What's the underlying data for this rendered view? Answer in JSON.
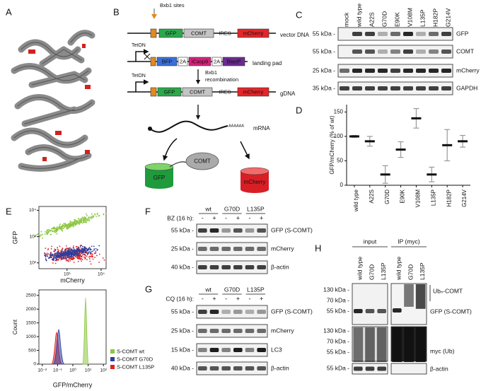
{
  "panel_labels": [
    "A",
    "B",
    "C",
    "D",
    "E",
    "F",
    "G",
    "H"
  ],
  "b": {
    "bxb1_sites": "Bxb1 sites",
    "tet_on": "TetON",
    "vector": {
      "gfp": "GFP",
      "comt": "COMT",
      "ires": "IRES",
      "mcherry": "mCherry",
      "label": "vector DNA"
    },
    "landing": {
      "bfp": "BFP",
      "t2a_1": "2A",
      "icasp9": "iCasp9",
      "t2a_2": "2A",
      "blast": "Blastᴿ",
      "label": "landing pad"
    },
    "recombination": [
      "Bxb1",
      "recombination"
    ],
    "gdna": {
      "gfp": "GFP",
      "comt": "COMT",
      "ires": "IRES",
      "mcherry": "mCherry",
      "label": "gDNA"
    },
    "mrna": "mRNA",
    "polya": "AAAAAA",
    "protein": {
      "gfp": "GFP",
      "comt": "COMT",
      "mcherry": "mCherry"
    }
  },
  "c": {
    "lanes": [
      "mock",
      "wild type",
      "A22S",
      "G70D",
      "E90K",
      "V108M",
      "L135P",
      "H182P",
      "G214V"
    ],
    "rows": [
      {
        "marker": "55 kDa -",
        "name": "GFP"
      },
      {
        "marker": "55 kDa -",
        "name": "COMT"
      },
      {
        "marker": "25 kDa -",
        "name": "mCherry"
      },
      {
        "marker": "35 kDa -",
        "name": "GAPDH"
      }
    ]
  },
  "chart_data": {
    "type": "dot",
    "ylabel": "GFP/mCherry (% of wt)",
    "categories": [
      "wild type",
      "A22S",
      "G70D",
      "E90K",
      "V108M",
      "L135P",
      "H182P",
      "G214V"
    ],
    "values": [
      100,
      90,
      22,
      73,
      137,
      22,
      82,
      90
    ],
    "errors": [
      2,
      10,
      18,
      16,
      20,
      15,
      32,
      12
    ],
    "ylim": [
      0,
      165
    ],
    "yticks": [
      0,
      50,
      100,
      150
    ],
    "color": "#111111",
    "error_color": "#999999"
  },
  "e_scatter": {
    "xlabel": "mCherry",
    "ylabel": "GFP",
    "xlim": [
      150,
      14000
    ],
    "ylim": [
      60,
      14000
    ],
    "log": true,
    "xticks": [
      {
        "value": 1000,
        "label": "10³"
      },
      {
        "value": 10000,
        "label": "10⁴"
      }
    ],
    "yticks": [
      {
        "value": 100,
        "label": "10²"
      },
      {
        "value": 1000,
        "label": "10³"
      },
      {
        "value": 10000,
        "label": "10⁴"
      }
    ]
  },
  "e_hist": {
    "xlabel": "GFP/mCherry",
    "ylabel": "Count",
    "xlim": [
      0.006,
      150
    ],
    "ylim": [
      0,
      2700
    ],
    "log_x": true,
    "xticks": [
      {
        "value": 0.01,
        "label": "10⁻²"
      },
      {
        "value": 0.1,
        "label": "10⁻¹"
      },
      {
        "value": 1,
        "label": "10⁰"
      },
      {
        "value": 10,
        "label": "10¹"
      },
      {
        "value": 100,
        "label": "10²"
      }
    ],
    "yticks": [
      0,
      500,
      1000,
      1500,
      2000,
      2500
    ],
    "legend": [
      {
        "name": "S-COMT wt",
        "color": "#8cc63f"
      },
      {
        "name": "S-COMT G70D",
        "color": "#2e3d9c"
      },
      {
        "name": "S-COMT L135P",
        "color": "#e02020"
      }
    ]
  },
  "f": {
    "groups": [
      "wt",
      "G70D",
      "L135P"
    ],
    "treatment": "BZ (16 h):",
    "signs": [
      "-",
      "+",
      "-",
      "+",
      "-",
      "+"
    ],
    "rows": [
      {
        "marker": "55 kDa -",
        "name": "GFP (S-COMT)"
      },
      {
        "marker": "25 kDa -",
        "name": "mCherry"
      },
      {
        "marker": "40 kDa -",
        "name": "β-actin"
      }
    ]
  },
  "g": {
    "groups": [
      "wt",
      "G70D",
      "L135P"
    ],
    "treatment": "CQ (16 h):",
    "signs": [
      "-",
      "+",
      "-",
      "+",
      "-",
      "+"
    ],
    "rows": [
      {
        "marker": "55 kDa -",
        "name": "GFP (S-COMT)"
      },
      {
        "marker": "25 kDa -",
        "name": "mCherry"
      },
      {
        "marker": "15 kDa -",
        "name": "LC3"
      },
      {
        "marker": "40 kDa -",
        "name": "β-actin"
      }
    ]
  },
  "h": {
    "input": "input",
    "ip": "IP (myc)",
    "lanes": [
      "wild type",
      "G70D",
      "L135P",
      "wild type",
      "G70D",
      "L135P"
    ],
    "markers_top": [
      "130 kDa -",
      "70 kDa -",
      "55 kDa -"
    ],
    "markers_mid": [
      "130 kDa -",
      "70 kDa -",
      "55 kDa -"
    ],
    "marker_actin": "55 kDa -",
    "labels": [
      "Ubₙ-COMT",
      "GFP (S-COMT)",
      "myc (Ub)",
      "β-actin"
    ]
  }
}
